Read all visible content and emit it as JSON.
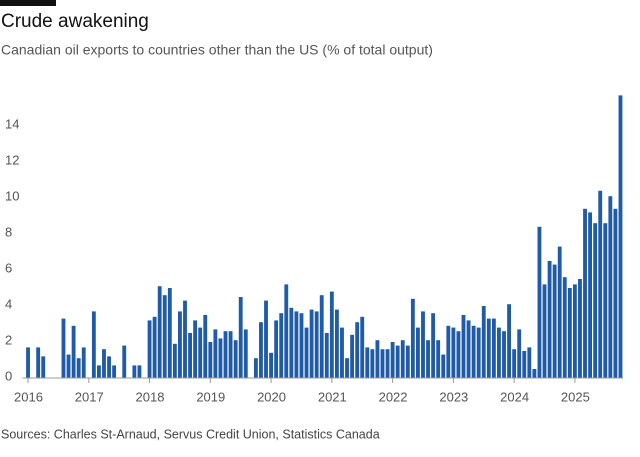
{
  "chart_data": {
    "type": "bar",
    "title": "Crude awakening",
    "subtitle": "Canadian oil exports to countries other than the US (% of total output)",
    "source": "Sources: Charles St-Arnaud, Servus Credit Union, Statistics Canada",
    "categories": [
      "2016",
      null,
      null,
      null,
      null,
      null,
      null,
      null,
      null,
      null,
      null,
      null,
      "2017",
      null,
      null,
      null,
      null,
      null,
      null,
      null,
      null,
      null,
      null,
      null,
      "2018",
      null,
      null,
      null,
      null,
      null,
      null,
      null,
      null,
      null,
      null,
      null,
      "2019",
      null,
      null,
      null,
      null,
      null,
      null,
      null,
      null,
      null,
      null,
      null,
      "2020",
      null,
      null,
      null,
      null,
      null,
      null,
      null,
      null,
      null,
      null,
      null,
      "2021",
      null,
      null,
      null,
      null,
      null,
      null,
      null,
      null,
      null,
      null,
      null,
      "2022",
      null,
      null,
      null,
      null,
      null,
      null,
      null,
      null,
      null,
      null,
      null,
      "2023",
      null,
      null,
      null,
      null,
      null,
      null,
      null,
      null,
      null,
      null,
      null,
      "2024",
      null,
      null,
      null,
      null,
      null,
      null,
      null,
      null,
      null,
      null,
      null,
      "2025",
      null,
      null,
      null,
      null,
      null,
      null,
      null,
      null,
      null
    ],
    "values": [
      1.7,
      0,
      1.7,
      1.2,
      0,
      0,
      0,
      3.3,
      1.3,
      2.9,
      1.1,
      1.7,
      0,
      3.7,
      0.7,
      1.6,
      1.2,
      0.7,
      0,
      1.8,
      0,
      0.7,
      0.7,
      0,
      3.2,
      3.4,
      5.1,
      4.6,
      5.0,
      1.9,
      3.7,
      4.3,
      2.5,
      3.2,
      2.8,
      3.5,
      2.0,
      2.7,
      2.2,
      2.6,
      2.6,
      2.1,
      4.5,
      2.7,
      0,
      1.1,
      3.1,
      4.3,
      1.4,
      3.2,
      3.6,
      5.2,
      3.9,
      3.7,
      3.6,
      2.8,
      3.8,
      3.7,
      4.6,
      2.5,
      4.8,
      3.8,
      2.8,
      1.1,
      2.4,
      3.1,
      3.4,
      1.7,
      1.6,
      2.1,
      1.6,
      1.6,
      2.0,
      1.8,
      2.1,
      1.8,
      4.4,
      2.8,
      3.7,
      2.1,
      3.6,
      2.1,
      1.3,
      2.9,
      2.8,
      2.6,
      3.5,
      3.2,
      2.9,
      2.8,
      4.0,
      3.3,
      3.3,
      2.8,
      2.6,
      4.1,
      1.6,
      2.7,
      1.5,
      1.7,
      0.5,
      8.4,
      5.2,
      6.5,
      6.3,
      7.3,
      5.6,
      5.0,
      5.2,
      5.5,
      9.4,
      9.2,
      8.6,
      10.4,
      8.6,
      10.1,
      9.4,
      15.7
    ],
    "color": "#1f5ba6",
    "ylim": [
      0,
      16
    ],
    "yticks": [
      0,
      2,
      4,
      6,
      8,
      10,
      12,
      14
    ],
    "grid": false
  }
}
